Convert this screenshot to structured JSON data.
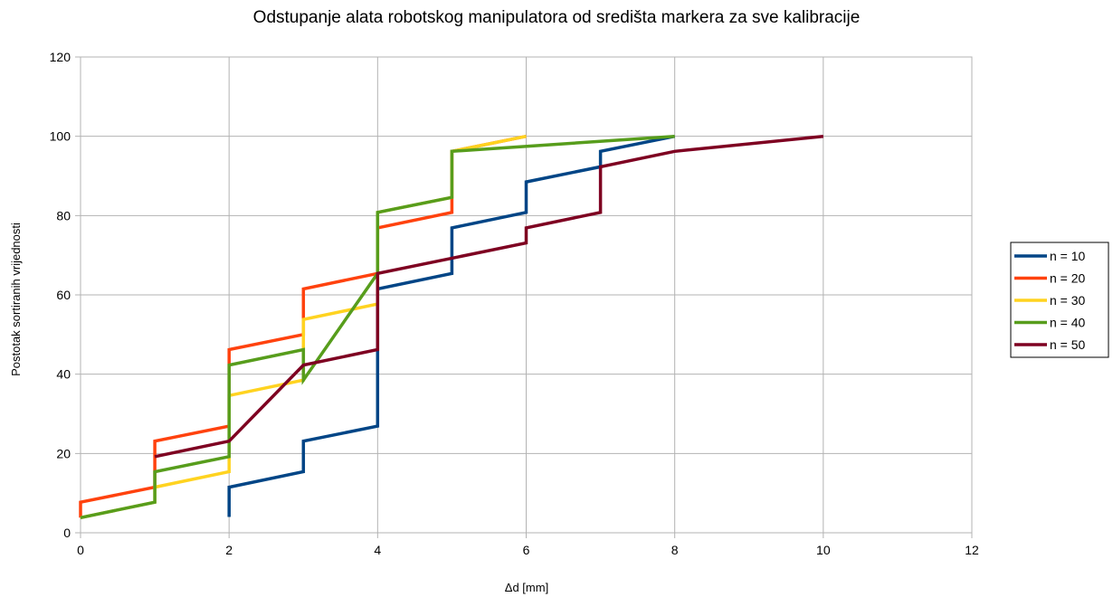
{
  "chart_data": {
    "type": "line",
    "title": "Odstupanje alata robotskog manipulatora od središta markera za sve kalibracije",
    "xlabel": "Δd [mm]",
    "ylabel": "Postotak sortiranih vrijednosti",
    "xlim": [
      0,
      12
    ],
    "ylim": [
      0,
      120
    ],
    "xticks": [
      0,
      2,
      4,
      6,
      8,
      10,
      12
    ],
    "yticks": [
      0,
      20,
      40,
      60,
      80,
      100,
      120
    ],
    "grid": true,
    "legend_position": "right",
    "series": [
      {
        "name": "n = 10",
        "color": "#004586",
        "points": [
          [
            2,
            4
          ],
          [
            2,
            11.5
          ],
          [
            3,
            15.4
          ],
          [
            3,
            23.1
          ],
          [
            4,
            26.9
          ],
          [
            4,
            61.5
          ],
          [
            5,
            65.4
          ],
          [
            5,
            76.9
          ],
          [
            6,
            80.8
          ],
          [
            6,
            88.5
          ],
          [
            7,
            92.3
          ],
          [
            7,
            96.2
          ],
          [
            8,
            100
          ]
        ]
      },
      {
        "name": "n = 20",
        "color": "#ff420e",
        "points": [
          [
            0,
            3.8
          ],
          [
            0,
            7.7
          ],
          [
            1,
            11.5
          ],
          [
            1,
            23.1
          ],
          [
            2,
            26.9
          ],
          [
            2,
            46.2
          ],
          [
            3,
            50
          ],
          [
            3,
            61.5
          ],
          [
            4,
            65.4
          ],
          [
            4,
            76.9
          ],
          [
            5,
            80.8
          ],
          [
            5,
            96.2
          ],
          [
            6,
            100
          ]
        ]
      },
      {
        "name": "n = 30",
        "color": "#ffd320",
        "points": [
          [
            0,
            3.8
          ],
          [
            1,
            7.7
          ],
          [
            1,
            11.5
          ],
          [
            2,
            15.4
          ],
          [
            2,
            34.6
          ],
          [
            3,
            38.5
          ],
          [
            3,
            53.8
          ],
          [
            4,
            57.7
          ],
          [
            4,
            80.8
          ],
          [
            5,
            84.6
          ],
          [
            5,
            96.2
          ],
          [
            6,
            100
          ]
        ]
      },
      {
        "name": "n = 40",
        "color": "#579d1c",
        "points": [
          [
            0,
            3.8
          ],
          [
            1,
            7.7
          ],
          [
            1,
            15.4
          ],
          [
            2,
            19.2
          ],
          [
            2,
            42.3
          ],
          [
            3,
            46.2
          ],
          [
            3,
            38.5
          ],
          [
            4,
            65.4
          ],
          [
            4,
            80.8
          ],
          [
            5,
            84.6
          ],
          [
            5,
            96.2
          ],
          [
            8,
            100
          ]
        ]
      },
      {
        "name": "n = 50",
        "color": "#7e0021",
        "points": [
          [
            1,
            19.2
          ],
          [
            2,
            23.1
          ],
          [
            3,
            42.3
          ],
          [
            4,
            46.2
          ],
          [
            4,
            65.4
          ],
          [
            6,
            73.1
          ],
          [
            6,
            76.9
          ],
          [
            7,
            80.8
          ],
          [
            7,
            92.3
          ],
          [
            8,
            96.2
          ],
          [
            10,
            100
          ]
        ]
      }
    ]
  }
}
